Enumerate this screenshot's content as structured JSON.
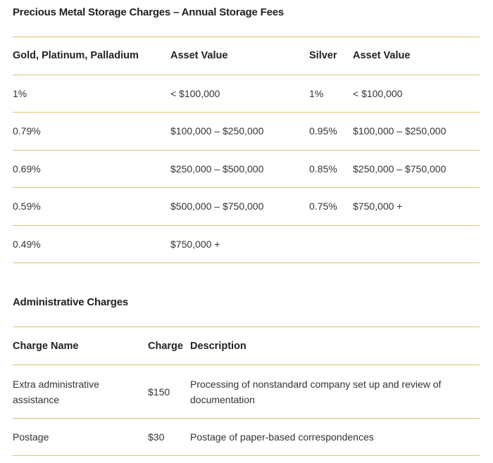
{
  "storage": {
    "title": "Precious Metal Storage Charges – Annual Storage Fees",
    "headers": {
      "gold_metals": "Gold, Platinum, Palladium",
      "gold_value": "Asset Value",
      "silver": "Silver",
      "silver_value": "Asset Value"
    },
    "rows": [
      {
        "gold_rate": "1%",
        "gold_value": "< $100,000",
        "silver_rate": "1%",
        "silver_value": "< $100,000"
      },
      {
        "gold_rate": "0.79%",
        "gold_value": "$100,000 – $250,000",
        "silver_rate": "0.95%",
        "silver_value": "$100,000 – $250,000"
      },
      {
        "gold_rate": "0.69%",
        "gold_value": "$250,000 – $500,000",
        "silver_rate": "0.85%",
        "silver_value": "$250,000 – $750,000"
      },
      {
        "gold_rate": "0.59%",
        "gold_value": "$500,000 – $750,000",
        "silver_rate": "0.75%",
        "silver_value": "$750,000 +"
      },
      {
        "gold_rate": "0.49%",
        "gold_value": "$750,000 +",
        "silver_rate": "",
        "silver_value": ""
      }
    ]
  },
  "admin": {
    "title": "Administrative Charges",
    "headers": {
      "name": "Charge Name",
      "charge": "Charge",
      "description": "Description"
    },
    "rows": [
      {
        "name": "Extra administrative assistance",
        "charge": "$150",
        "description": "Processing of nonstandard company set up and review of documentation"
      },
      {
        "name": "Postage",
        "charge": "$30",
        "description": "Postage of paper-based correspondences"
      }
    ]
  },
  "colors": {
    "rule": "#d8c46a",
    "text": "#333333",
    "heading": "#222222"
  }
}
